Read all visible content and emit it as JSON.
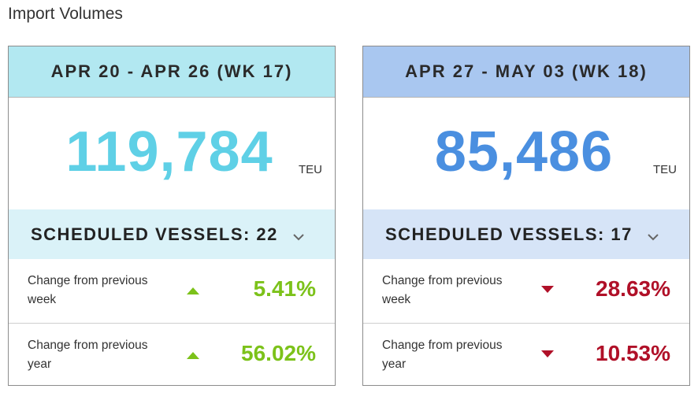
{
  "page_title": "Import Volumes",
  "cards": [
    {
      "header": "APR 20 - APR 26 (WK 17)",
      "volume": "119,784",
      "unit": "TEU",
      "vessels_label": "SCHEDULED VESSELS: 22",
      "changes": [
        {
          "label": "Change from previous week",
          "direction": "up",
          "value": "5.41%"
        },
        {
          "label": "Change from previous year",
          "direction": "up",
          "value": "56.02%"
        }
      ],
      "colors": {
        "header_bg": "#b2e8f1",
        "volume": "#5fd0e6",
        "vessels_bg": "#daf2f8"
      }
    },
    {
      "header": "APR 27 - MAY 03 (WK 18)",
      "volume": "85,486",
      "unit": "TEU",
      "vessels_label": "SCHEDULED VESSELS: 17",
      "changes": [
        {
          "label": "Change from previous week",
          "direction": "down",
          "value": "28.63%"
        },
        {
          "label": "Change from previous year",
          "direction": "down",
          "value": "10.53%"
        }
      ],
      "colors": {
        "header_bg": "#a9c7f0",
        "volume": "#4a8fe0",
        "vessels_bg": "#d6e4f7"
      }
    }
  ],
  "icons": {
    "expand": "chevron-down-icon",
    "increase": "triangle-up-icon",
    "decrease": "triangle-down-icon"
  },
  "status_colors": {
    "positive": "#7cc21a",
    "negative": "#b01028"
  }
}
